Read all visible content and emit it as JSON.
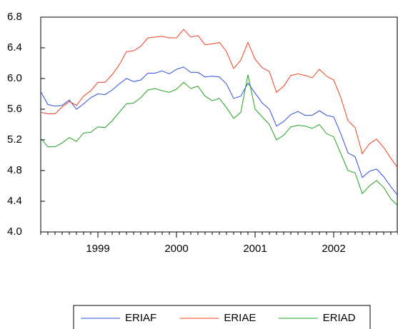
{
  "chart_data": {
    "type": "line",
    "categories": [
      null,
      null,
      null,
      null,
      null,
      null,
      null,
      null,
      "1999",
      null,
      null,
      null,
      null,
      null,
      null,
      null,
      null,
      null,
      null,
      "2000",
      null,
      null,
      null,
      null,
      null,
      null,
      null,
      null,
      null,
      null,
      "2001",
      null,
      null,
      null,
      null,
      null,
      null,
      null,
      null,
      null,
      null,
      "2002",
      null,
      null,
      null,
      null,
      null,
      null,
      null,
      null,
      null
    ],
    "series": [
      {
        "name": "ERIAF",
        "color": "#3050e0",
        "values": [
          5.83,
          5.66,
          5.64,
          5.65,
          5.72,
          5.6,
          5.67,
          5.75,
          5.8,
          5.79,
          5.85,
          5.93,
          6.0,
          5.96,
          5.98,
          6.07,
          6.07,
          6.1,
          6.06,
          6.12,
          6.15,
          6.08,
          6.08,
          6.02,
          6.03,
          6.02,
          5.93,
          5.74,
          5.77,
          5.94,
          5.81,
          5.68,
          5.6,
          5.38,
          5.44,
          5.53,
          5.57,
          5.52,
          5.52,
          5.58,
          5.52,
          5.5,
          5.28,
          5.03,
          4.98,
          4.71,
          4.79,
          4.82,
          4.72,
          4.59,
          4.47
        ]
      },
      {
        "name": "ERIAE",
        "color": "#f04020",
        "values": [
          5.56,
          5.54,
          5.54,
          5.63,
          5.7,
          5.65,
          5.77,
          5.84,
          5.95,
          5.95,
          6.05,
          6.18,
          6.35,
          6.36,
          6.42,
          6.53,
          6.54,
          6.55,
          6.53,
          6.53,
          6.64,
          6.54,
          6.56,
          6.44,
          6.45,
          6.47,
          6.35,
          6.13,
          6.24,
          6.47,
          6.25,
          6.14,
          6.09,
          5.82,
          5.9,
          6.04,
          6.06,
          6.04,
          6.01,
          6.12,
          6.03,
          5.98,
          5.75,
          5.45,
          5.36,
          5.02,
          5.15,
          5.21,
          5.1,
          4.96,
          4.83
        ]
      },
      {
        "name": "ERIAD",
        "color": "#20a020",
        "values": [
          5.22,
          5.11,
          5.11,
          5.16,
          5.23,
          5.18,
          5.29,
          5.3,
          5.37,
          5.36,
          5.45,
          5.56,
          5.67,
          5.68,
          5.75,
          5.85,
          5.87,
          5.84,
          5.82,
          5.86,
          5.95,
          5.87,
          5.9,
          5.77,
          5.71,
          5.74,
          5.62,
          5.48,
          5.56,
          6.05,
          5.6,
          5.5,
          5.4,
          5.2,
          5.26,
          5.37,
          5.39,
          5.38,
          5.35,
          5.4,
          5.28,
          5.24,
          5.02,
          4.8,
          4.77,
          4.5,
          4.6,
          4.67,
          4.58,
          4.43,
          4.34
        ]
      }
    ],
    "ylim": [
      4.0,
      6.8
    ],
    "yticks": [
      {
        "value": 4.0,
        "label": "4.0"
      },
      4.4,
      4.8,
      5.2,
      5.6,
      {
        "value": 6.0,
        "label": "6.0"
      },
      6.4,
      6.8
    ],
    "grid": false,
    "legend": "bottom"
  }
}
